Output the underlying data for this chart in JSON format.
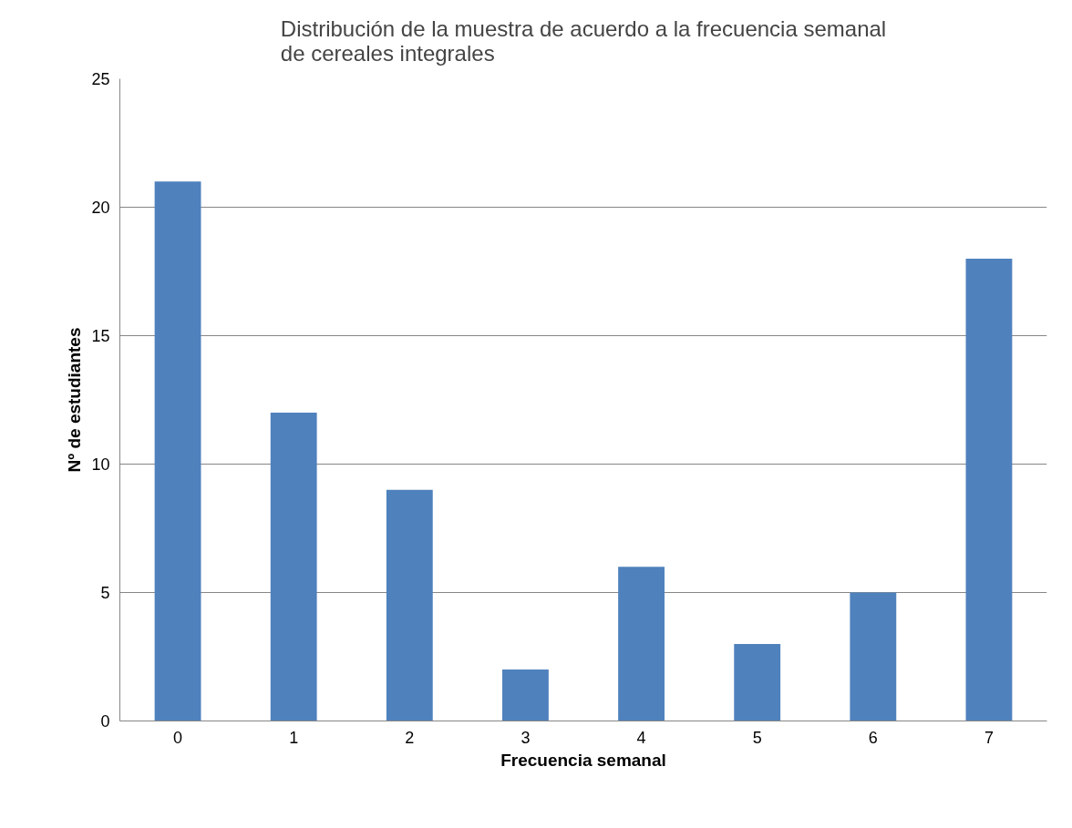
{
  "chart_data": {
    "type": "bar",
    "title": "Distribución de la muestra de acuerdo a la frecuencia semanal\nde cereales integrales",
    "xlabel": "Frecuencia semanal",
    "ylabel": "Nº de estudiantes",
    "categories": [
      "0",
      "1",
      "2",
      "3",
      "4",
      "5",
      "6",
      "7"
    ],
    "values": [
      21,
      12,
      9,
      2,
      6,
      3,
      5,
      18
    ],
    "color": "#4f81bd",
    "ylim": [
      0,
      25
    ],
    "yticks": [
      0,
      5,
      10,
      15,
      20,
      25
    ],
    "grid": "y"
  }
}
